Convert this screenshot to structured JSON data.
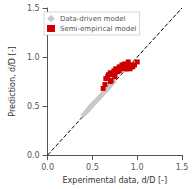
{
  "chart_data": {
    "type": "scatter",
    "xlabel": "Experimental data, d/D [-]",
    "ylabel": "Prediction, d/D [-]",
    "xlim": [
      0,
      1.5
    ],
    "ylim": [
      0,
      1.5
    ],
    "xticks": [
      {
        "value": 0,
        "label": "0.0"
      },
      0.5,
      {
        "value": 1.0,
        "label": "1.0"
      },
      1.5
    ],
    "yticks": [
      {
        "value": 0,
        "label": "0.0"
      },
      0.5,
      {
        "value": 1.0,
        "label": "1.0"
      },
      1.5
    ],
    "grid": false,
    "legend": "upper left",
    "series": [
      {
        "type": "line",
        "line_style": "dashed",
        "color": "#000000",
        "x": [
          0,
          1.5
        ],
        "values": [
          0,
          1.5
        ]
      },
      {
        "name": "Data-driven model",
        "type": "scatter",
        "marker": "diamond",
        "color": "#c8c8c8",
        "x": [
          0.4,
          0.42,
          0.43,
          0.44,
          0.45,
          0.46,
          0.47,
          0.47,
          0.48,
          0.48,
          0.49,
          0.5,
          0.51,
          0.51,
          0.52,
          0.52,
          0.53,
          0.54,
          0.55,
          0.55,
          0.56,
          0.57,
          0.58,
          0.59,
          0.6,
          0.61,
          0.62,
          0.63,
          0.64,
          0.65,
          0.66,
          0.67,
          0.68,
          0.69,
          0.7,
          0.5,
          0.53,
          0.56,
          0.59,
          0.62,
          0.65,
          0.68,
          0.44,
          0.47,
          0.72,
          0.74
        ],
        "values": [
          0.41,
          0.43,
          0.44,
          0.45,
          0.46,
          0.47,
          0.48,
          0.49,
          0.49,
          0.5,
          0.5,
          0.51,
          0.52,
          0.52,
          0.53,
          0.54,
          0.54,
          0.55,
          0.56,
          0.56,
          0.57,
          0.58,
          0.59,
          0.6,
          0.61,
          0.62,
          0.63,
          0.64,
          0.65,
          0.66,
          0.67,
          0.68,
          0.69,
          0.7,
          0.71,
          0.51,
          0.54,
          0.57,
          0.6,
          0.63,
          0.66,
          0.69,
          0.45,
          0.48,
          0.73,
          0.75
        ]
      },
      {
        "name": "Semi-empirical model",
        "type": "scatter",
        "marker": "square",
        "color": "#cc0000",
        "x": [
          0.62,
          0.64,
          0.65,
          0.67,
          0.68,
          0.7,
          0.71,
          0.73,
          0.74,
          0.75,
          0.76,
          0.78,
          0.79,
          0.8,
          0.82,
          0.83,
          0.85,
          0.86,
          0.88,
          0.89,
          0.9,
          0.92,
          0.93,
          0.95,
          0.97,
          1.0,
          0.7,
          0.75,
          0.8,
          0.87
        ],
        "values": [
          0.68,
          0.72,
          0.78,
          0.8,
          0.82,
          0.84,
          0.76,
          0.82,
          0.86,
          0.8,
          0.88,
          0.85,
          0.88,
          0.9,
          0.88,
          0.92,
          0.9,
          0.93,
          0.88,
          0.92,
          0.95,
          0.88,
          0.92,
          0.9,
          0.92,
          0.95,
          0.75,
          0.82,
          0.86,
          0.88
        ]
      }
    ]
  }
}
